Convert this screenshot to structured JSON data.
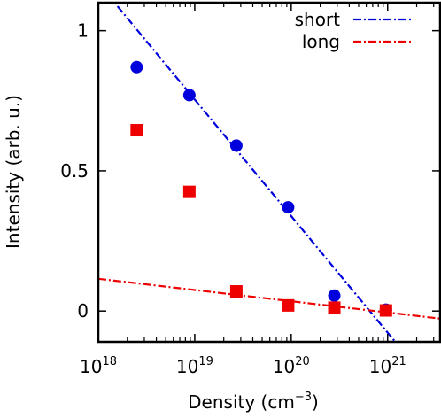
{
  "chart_data": {
    "type": "scatter",
    "title": "",
    "xlabel": {
      "base": "Density (cm",
      "sup": "−3",
      "tail": ")"
    },
    "ylabel": "Intensity (arb. u.)",
    "x_scale": "log",
    "xlim": [
      1e+18,
      3.5e+21
    ],
    "ylim": [
      -0.11,
      1.1
    ],
    "x_ticks": [
      {
        "value": 1e+18,
        "base": "10",
        "exp": "18"
      },
      {
        "value": 1e+19,
        "base": "10",
        "exp": "19"
      },
      {
        "value": 1e+20,
        "base": "10",
        "exp": "20"
      },
      {
        "value": 1e+21,
        "base": "10",
        "exp": "21"
      }
    ],
    "y_ticks": [
      {
        "value": 0,
        "label": "0"
      },
      {
        "value": 0.5,
        "label": "0.5"
      },
      {
        "value": 1,
        "label": "1"
      }
    ],
    "grid": false,
    "legend_position": "top-right",
    "series": [
      {
        "name": "short",
        "color": "#0000dd",
        "marker": "circle",
        "points": [
          {
            "x": 2.5e+18,
            "y": 0.87
          },
          {
            "x": 8.8e+18,
            "y": 0.77
          },
          {
            "x": 2.7e+19,
            "y": 0.59
          },
          {
            "x": 9.3e+19,
            "y": 0.37
          },
          {
            "x": 2.8e+20,
            "y": 0.055
          },
          {
            "x": 9.6e+20,
            "y": 0.005
          }
        ],
        "fit_line": [
          {
            "x": 1e+18,
            "y": 1.17
          },
          {
            "x": 1.2e+21,
            "y": -0.11
          }
        ]
      },
      {
        "name": "long",
        "color": "#ee0000",
        "marker": "square",
        "points": [
          {
            "x": 2.5e+18,
            "y": 0.645
          },
          {
            "x": 8.8e+18,
            "y": 0.425
          },
          {
            "x": 2.7e+19,
            "y": 0.07
          },
          {
            "x": 9.3e+19,
            "y": 0.02
          },
          {
            "x": 2.8e+20,
            "y": 0.012
          },
          {
            "x": 9.6e+20,
            "y": 0.002
          }
        ],
        "fit_line": [
          {
            "x": 1e+18,
            "y": 0.115
          },
          {
            "x": 3.5e+21,
            "y": -0.027
          }
        ]
      }
    ]
  }
}
